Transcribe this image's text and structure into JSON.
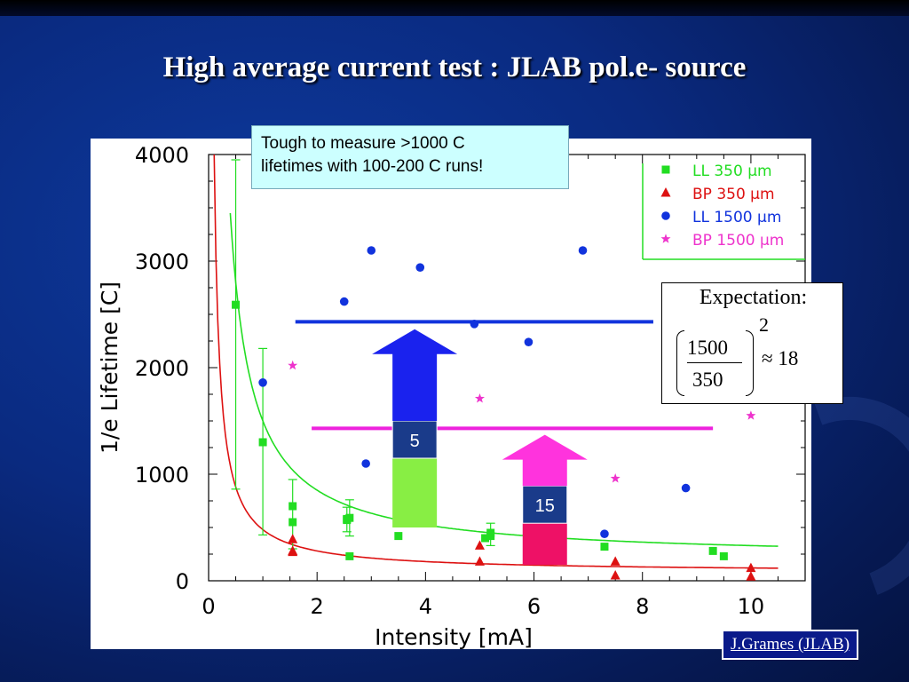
{
  "slide": {
    "title": "High average current test : JLAB pol.e- source",
    "credit": "J.Grames (JLAB)"
  },
  "note": {
    "line1": "Tough to measure >1000 C",
    "line2": "lifetimes with 100-200 C runs!"
  },
  "expectation": {
    "heading": "Expectation:",
    "numerator": "1500",
    "denominator": "350",
    "exponent": "2",
    "result": "≈ 18"
  },
  "chart_data": {
    "type": "scatter",
    "title": "",
    "xlabel": "Intensity  [mA]",
    "ylabel": "1/e  Lifetime  [C]",
    "xlim": [
      0,
      11
    ],
    "ylim": [
      0,
      4000
    ],
    "x_ticks": [
      0,
      2,
      4,
      6,
      8,
      10
    ],
    "y_ticks": [
      0,
      1000,
      2000,
      3000,
      4000
    ],
    "legend_position": "top-right",
    "series": [
      {
        "name": "LL  350  μm",
        "marker": "square",
        "color": "#22dd22",
        "points": [
          [
            0.5,
            2590
          ],
          [
            1.0,
            1300
          ],
          [
            1.55,
            700
          ],
          [
            1.55,
            550
          ],
          [
            2.6,
            230
          ],
          [
            2.55,
            570
          ],
          [
            2.6,
            590
          ],
          [
            2.55,
            580
          ],
          [
            3.5,
            420
          ],
          [
            5.1,
            400
          ],
          [
            5.2,
            420
          ],
          [
            5.2,
            450
          ],
          [
            7.3,
            320
          ],
          [
            9.3,
            280
          ],
          [
            9.5,
            230
          ]
        ],
        "error_bars": [
          [
            0.5,
            860,
            3950
          ],
          [
            1.0,
            430,
            2180
          ],
          [
            1.55,
            300,
            950
          ],
          [
            2.55,
            460,
            690
          ],
          [
            2.6,
            420,
            760
          ],
          [
            5.2,
            330,
            540
          ]
        ]
      },
      {
        "name": "BP  350  μm",
        "marker": "triangle",
        "color": "#dd1111",
        "points": [
          [
            1.55,
            390
          ],
          [
            1.55,
            280
          ],
          [
            1.55,
            270
          ],
          [
            5.0,
            330
          ],
          [
            5.0,
            180
          ],
          [
            7.5,
            180
          ],
          [
            7.5,
            50
          ],
          [
            10.0,
            120
          ],
          [
            10.0,
            40
          ]
        ]
      },
      {
        "name": "LL  1500  μm",
        "marker": "circle",
        "color": "#1133dd",
        "points": [
          [
            1.0,
            1860
          ],
          [
            2.5,
            2620
          ],
          [
            3.0,
            3100
          ],
          [
            2.9,
            1100
          ],
          [
            3.9,
            2940
          ],
          [
            4.9,
            2410
          ],
          [
            5.9,
            2240
          ],
          [
            6.9,
            3100
          ],
          [
            7.3,
            440
          ],
          [
            8.8,
            870
          ]
        ]
      },
      {
        "name": "BP  1500  μm",
        "marker": "star",
        "color": "#ee33cc",
        "points": [
          [
            1.55,
            2020
          ],
          [
            5.0,
            1710
          ],
          [
            7.5,
            960
          ],
          [
            10.0,
            1550
          ]
        ]
      }
    ],
    "fit_curves": [
      {
        "color": "#22dd22",
        "k": 1300,
        "c": 200,
        "x_from": 0.4,
        "x_to": 10.5
      },
      {
        "color": "#dd1111",
        "k": 400,
        "c": 80,
        "x_from": 0.1,
        "x_to": 10.5
      }
    ],
    "reference_lines": [
      {
        "y": 2430,
        "x_from": 1.6,
        "x_to": 8.2,
        "color": "#1133dd"
      },
      {
        "y": 1430,
        "x_from": 1.9,
        "x_to": 9.3,
        "color": "#ee22dd"
      }
    ],
    "annotations": [
      {
        "label": "5",
        "x": 3.8,
        "color": "#1a22ee",
        "base_color": "#88ee44",
        "band_color": "#1a3b8a",
        "y_base": 500,
        "y_band": 1150,
        "y_band_top": 1500,
        "y_tip": 2360
      },
      {
        "label": "15",
        "x": 6.2,
        "color": "#ff33dd",
        "base_color": "#ee1166",
        "band_color": "#1a3b8a",
        "y_base": 150,
        "y_band": 540,
        "y_band_top": 890,
        "y_tip": 1370
      }
    ]
  }
}
